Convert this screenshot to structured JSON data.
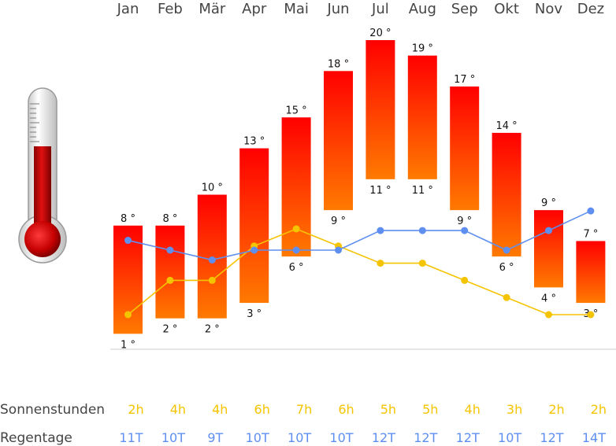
{
  "chart_data": {
    "type": "bar",
    "title": "",
    "categories": [
      "Jan",
      "Feb",
      "Mär",
      "Apr",
      "Mai",
      "Jun",
      "Jul",
      "Aug",
      "Sep",
      "Okt",
      "Nov",
      "Dez"
    ],
    "temp_max": [
      8,
      8,
      10,
      13,
      15,
      18,
      20,
      19,
      17,
      14,
      9,
      7
    ],
    "temp_min": [
      1,
      2,
      2,
      3,
      6,
      9,
      11,
      11,
      9,
      6,
      4,
      3
    ],
    "temp_max_labels": [
      "8 °",
      "8 °",
      "10 °",
      "13 °",
      "15 °",
      "18 °",
      "20 °",
      "19 °",
      "17 °",
      "14 °",
      "9 °",
      "7 °"
    ],
    "temp_min_labels": [
      "1 °",
      "2 °",
      "2 °",
      "3 °",
      "6 °",
      "9 °",
      "11 °",
      "11 °",
      "9 °",
      "6 °",
      "4 °",
      "3 °"
    ],
    "sunshine_hours": [
      2,
      4,
      4,
      6,
      7,
      6,
      5,
      5,
      4,
      3,
      2,
      2
    ],
    "rain_days": [
      11,
      10,
      9,
      10,
      10,
      10,
      12,
      12,
      12,
      10,
      12,
      14
    ],
    "sunshine_row_label": "Sonnenstunden",
    "sunshine_labels": [
      "2h",
      "4h",
      "4h",
      "6h",
      "7h",
      "6h",
      "5h",
      "5h",
      "4h",
      "3h",
      "2h",
      "2h"
    ],
    "rain_row_label": "Regentage",
    "rain_labels": [
      "11T",
      "10T",
      "9T",
      "10T",
      "10T",
      "10T",
      "12T",
      "12T",
      "12T",
      "10T",
      "12T",
      "14T"
    ],
    "ylim": [
      0,
      21
    ],
    "colors": {
      "bar_top": "#ff0000",
      "bar_bottom": "#ff7a00",
      "sunshine_line": "#f5c400",
      "rain_line": "#5e8ff0",
      "axis": "#cccccc"
    }
  }
}
